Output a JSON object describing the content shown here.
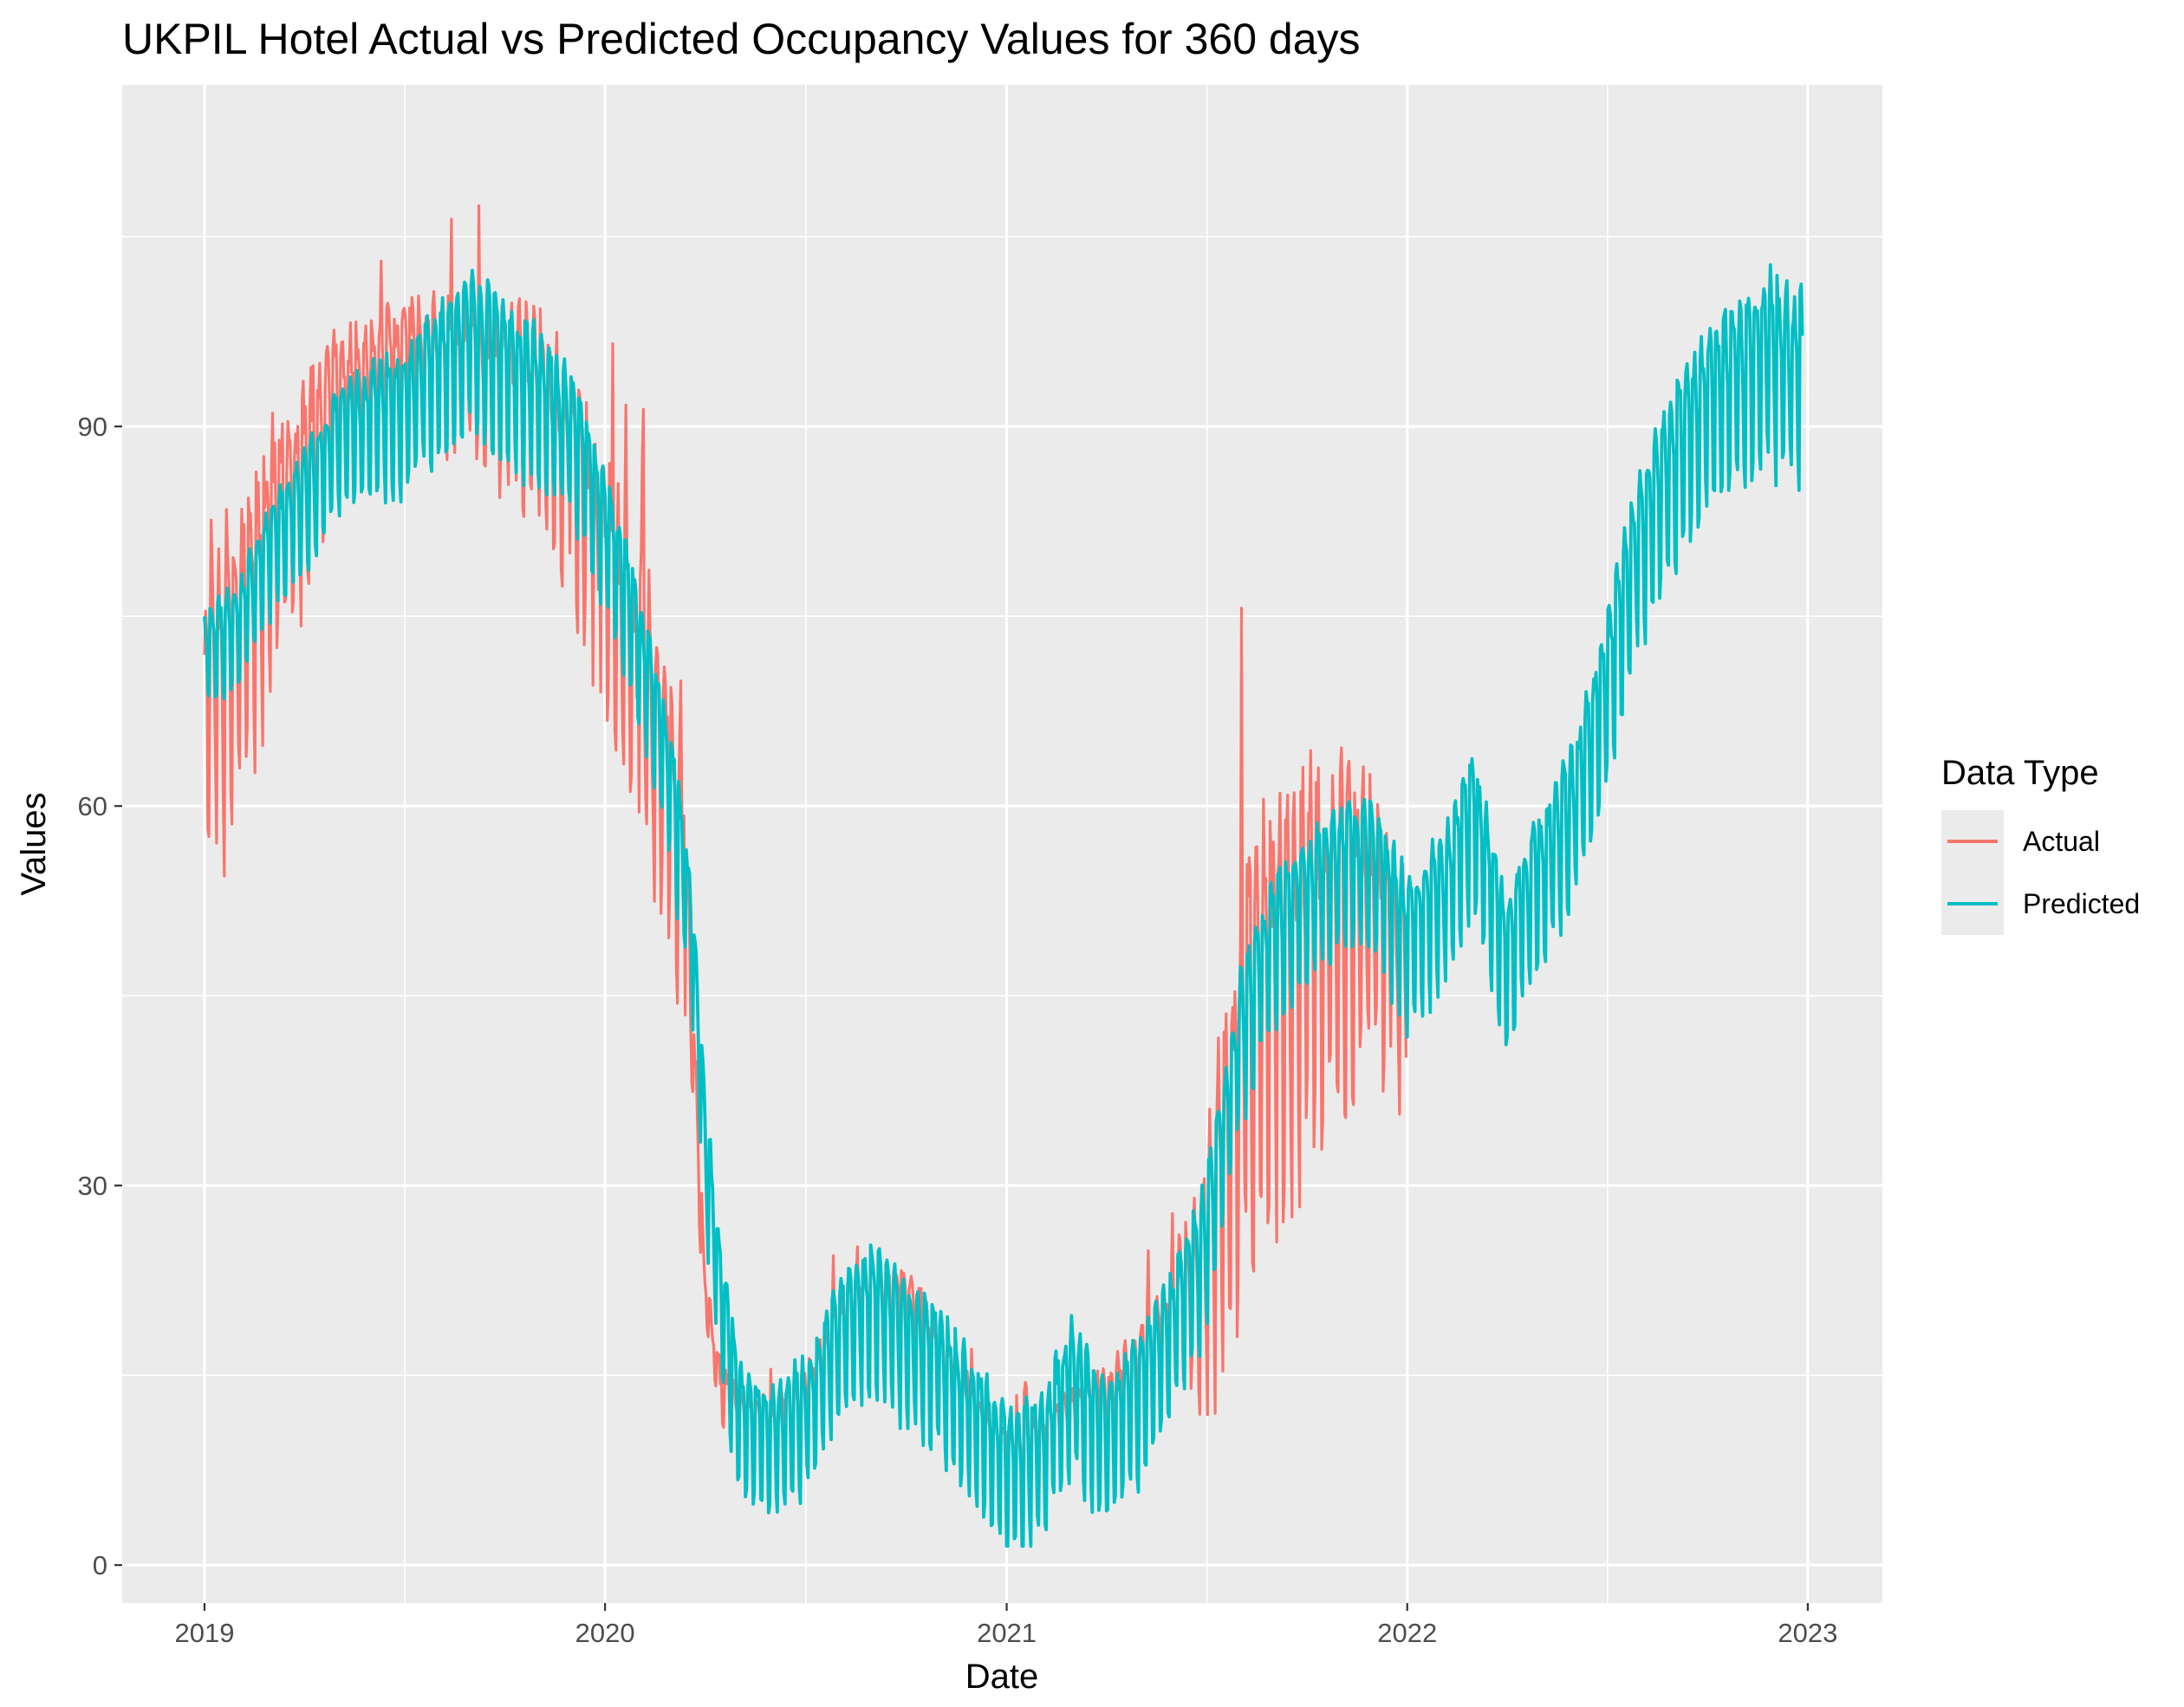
{
  "chart_data": {
    "type": "line",
    "title": "UKPIL Hotel Actual vs Predicted Occupancy Values for 360 days",
    "xlabel": "Date",
    "ylabel": "Values",
    "x_tick_labels": [
      "2019",
      "2020",
      "2021",
      "2022",
      "2023"
    ],
    "y_tick_labels": [
      "0",
      "30",
      "60",
      "90"
    ],
    "y_ticks": [
      0,
      30,
      60,
      90
    ],
    "xlim": [
      "2018-10-18",
      "2023-03-10"
    ],
    "ylim": [
      -3,
      117
    ],
    "grid": true,
    "legend": {
      "title": "Data Type",
      "position": "right"
    },
    "series": [
      {
        "name": "Actual",
        "color": "#F8766D",
        "period_start": "2019-01-01",
        "period_end": "2021-12-31",
        "midline": [
          [
            "2019-01-01",
            74
          ],
          [
            "2019-02-01",
            77
          ],
          [
            "2019-03-01",
            84
          ],
          [
            "2019-04-01",
            90
          ],
          [
            "2019-05-01",
            94
          ],
          [
            "2019-06-01",
            96
          ],
          [
            "2019-07-01",
            97
          ],
          [
            "2019-08-01",
            97
          ],
          [
            "2019-09-01",
            97
          ],
          [
            "2019-10-01",
            96
          ],
          [
            "2019-11-01",
            95
          ],
          [
            "2019-12-01",
            90
          ],
          [
            "2020-01-01",
            83
          ],
          [
            "2020-02-01",
            74
          ],
          [
            "2020-03-01",
            66
          ],
          [
            "2020-03-15",
            55
          ],
          [
            "2020-04-01",
            22
          ],
          [
            "2020-04-15",
            15
          ],
          [
            "2020-05-01",
            13
          ],
          [
            "2020-06-01",
            12
          ],
          [
            "2020-07-01",
            14
          ],
          [
            "2020-08-01",
            20
          ],
          [
            "2020-09-01",
            23
          ],
          [
            "2020-10-01",
            22
          ],
          [
            "2020-11-01",
            18
          ],
          [
            "2020-12-01",
            13
          ],
          [
            "2021-01-01",
            10
          ],
          [
            "2021-02-01",
            11
          ],
          [
            "2021-03-01",
            13
          ],
          [
            "2021-04-01",
            14
          ],
          [
            "2021-05-01",
            17
          ],
          [
            "2021-06-01",
            22
          ],
          [
            "2021-07-01",
            28
          ],
          [
            "2021-08-01",
            45
          ],
          [
            "2021-09-01",
            52
          ],
          [
            "2021-10-01",
            55
          ],
          [
            "2021-11-01",
            57
          ],
          [
            "2021-12-01",
            56
          ],
          [
            "2021-12-31",
            50
          ]
        ],
        "weekly_swing": [
          [
            "2019-01-01",
            18
          ],
          [
            "2019-04-01",
            12
          ],
          [
            "2019-06-01",
            7
          ],
          [
            "2019-09-01",
            9
          ],
          [
            "2019-12-01",
            13
          ],
          [
            "2020-03-01",
            16
          ],
          [
            "2020-04-01",
            3
          ],
          [
            "2020-08-01",
            4
          ],
          [
            "2021-01-01",
            3
          ],
          [
            "2021-06-01",
            5
          ],
          [
            "2021-08-01",
            24
          ],
          [
            "2021-10-01",
            22
          ],
          [
            "2021-12-31",
            12
          ]
        ]
      },
      {
        "name": "Predicted",
        "color": "#00BFC4",
        "period_start": "2019-01-01",
        "period_end": "2022-12-27",
        "midline": [
          [
            "2019-01-01",
            74
          ],
          [
            "2019-02-01",
            76
          ],
          [
            "2019-03-01",
            82
          ],
          [
            "2019-04-01",
            86
          ],
          [
            "2019-05-01",
            91
          ],
          [
            "2019-06-01",
            93
          ],
          [
            "2019-07-01",
            94
          ],
          [
            "2019-08-01",
            97
          ],
          [
            "2019-09-01",
            100
          ],
          [
            "2019-10-01",
            97
          ],
          [
            "2019-11-01",
            95
          ],
          [
            "2019-12-01",
            92
          ],
          [
            "2020-01-01",
            84
          ],
          [
            "2020-02-01",
            75
          ],
          [
            "2020-03-01",
            64
          ],
          [
            "2020-03-20",
            52
          ],
          [
            "2020-04-01",
            35
          ],
          [
            "2020-04-15",
            24
          ],
          [
            "2020-05-01",
            14
          ],
          [
            "2020-06-01",
            12
          ],
          [
            "2020-07-01",
            14
          ],
          [
            "2020-08-01",
            20
          ],
          [
            "2020-09-01",
            23
          ],
          [
            "2020-10-01",
            20
          ],
          [
            "2020-11-01",
            18
          ],
          [
            "2020-12-01",
            14
          ],
          [
            "2021-01-01",
            10
          ],
          [
            "2021-02-01",
            11
          ],
          [
            "2021-03-01",
            17
          ],
          [
            "2021-04-01",
            12
          ],
          [
            "2021-05-01",
            16
          ],
          [
            "2021-06-01",
            21
          ],
          [
            "2021-07-01",
            28
          ],
          [
            "2021-08-01",
            44
          ],
          [
            "2021-09-01",
            52
          ],
          [
            "2021-10-01",
            55
          ],
          [
            "2021-11-01",
            58
          ],
          [
            "2021-12-01",
            58
          ],
          [
            "2022-01-01",
            52
          ],
          [
            "2022-02-01",
            55
          ],
          [
            "2022-03-01",
            62
          ],
          [
            "2022-04-01",
            51
          ],
          [
            "2022-05-01",
            57
          ],
          [
            "2022-06-01",
            62
          ],
          [
            "2022-07-01",
            72
          ],
          [
            "2022-08-01",
            84
          ],
          [
            "2022-09-01",
            90
          ],
          [
            "2022-10-01",
            95
          ],
          [
            "2022-11-01",
            97
          ],
          [
            "2022-12-01",
            99
          ],
          [
            "2022-12-27",
            97
          ]
        ],
        "weekly_swing": [
          [
            "2019-01-01",
            6
          ],
          [
            "2019-06-01",
            8
          ],
          [
            "2019-09-01",
            10
          ],
          [
            "2020-01-01",
            8
          ],
          [
            "2020-05-01",
            8
          ],
          [
            "2021-01-01",
            9
          ],
          [
            "2021-06-01",
            9
          ],
          [
            "2022-01-01",
            9
          ],
          [
            "2022-06-01",
            10
          ],
          [
            "2022-12-27",
            12
          ]
        ]
      }
    ]
  }
}
